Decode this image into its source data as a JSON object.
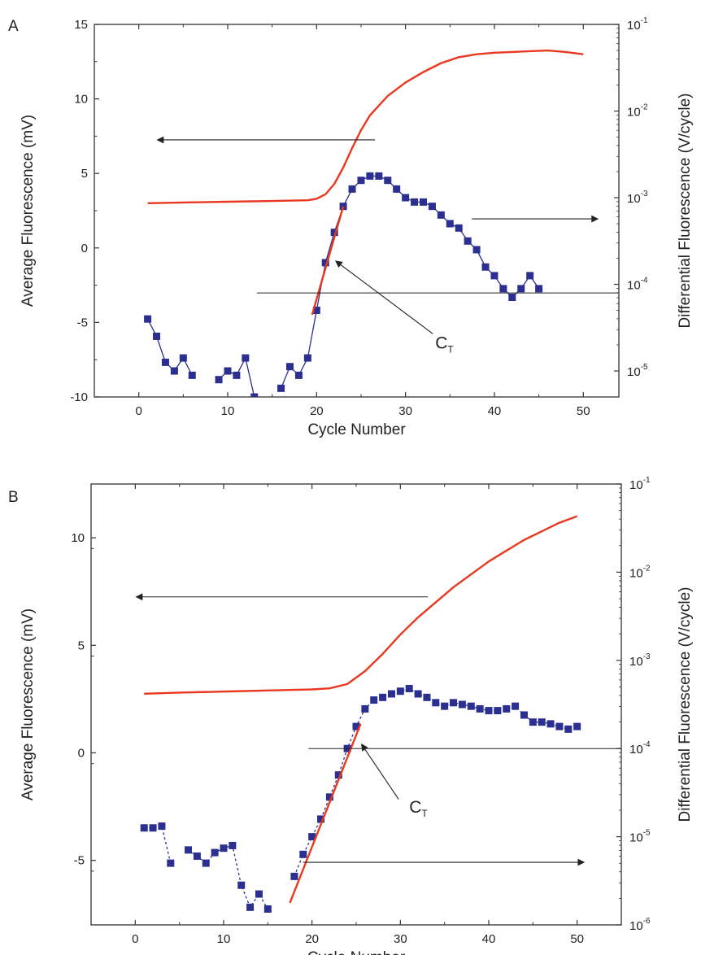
{
  "colors": {
    "fluorescence": "#e8381f",
    "derivative": "#2b2f8f",
    "axis": "#333333",
    "annotation": "#222222"
  },
  "chart_data": [
    {
      "panel": "A",
      "type": "line",
      "xlabel": "Cycle Number",
      "ylabel_left": "Average Fluorescence (mV)",
      "ylabel_right": "Differential Fluorescence (V/cycle)",
      "xlim": [
        -5,
        54
      ],
      "ylim_left": [
        -10,
        15
      ],
      "ylim_right_log": [
        -5.3,
        -1
      ],
      "x_ticks": [
        0,
        10,
        20,
        30,
        40,
        50
      ],
      "y_ticks_left": [
        -10,
        -5,
        0,
        5,
        10,
        15
      ],
      "y_ticks_right": [
        {
          "base": "10",
          "exp": "-5",
          "value": -5
        },
        {
          "base": "10",
          "exp": "-4",
          "value": -4
        },
        {
          "base": "10",
          "exp": "-3",
          "value": -3
        },
        {
          "base": "10",
          "exp": "-2",
          "value": -2
        },
        {
          "base": "10",
          "exp": "-1",
          "value": -1
        }
      ],
      "annotation": {
        "text": "C",
        "sub": "T",
        "x": 21,
        "threshold_log10": -4.1
      },
      "series": [
        {
          "axis": "left",
          "style": "line",
          "color": "#e8381f",
          "points": [
            [
              1,
              3.0
            ],
            [
              5,
              3.05
            ],
            [
              10,
              3.1
            ],
            [
              15,
              3.15
            ],
            [
              19,
              3.2
            ],
            [
              20,
              3.3
            ],
            [
              21,
              3.6
            ],
            [
              22,
              4.3
            ],
            [
              23,
              5.4
            ],
            [
              24,
              6.7
            ],
            [
              25,
              7.9
            ],
            [
              26,
              8.9
            ],
            [
              28,
              10.2
            ],
            [
              30,
              11.1
            ],
            [
              32,
              11.8
            ],
            [
              34,
              12.4
            ],
            [
              36,
              12.8
            ],
            [
              38,
              13.0
            ],
            [
              40,
              13.1
            ],
            [
              42,
              13.15
            ],
            [
              44,
              13.2
            ],
            [
              46,
              13.25
            ],
            [
              48,
              13.15
            ],
            [
              50,
              13.0
            ]
          ]
        },
        {
          "axis": "right_log",
          "style": "markers",
          "color": "#2b2f8f",
          "points": [
            [
              1,
              -4.4
            ],
            [
              2,
              -4.6
            ],
            [
              3,
              -4.9
            ],
            [
              4,
              -5.0
            ],
            [
              5,
              -4.85
            ],
            [
              6,
              -5.05
            ],
            [
              9,
              -5.1
            ],
            [
              10,
              -5.0
            ],
            [
              11,
              -5.05
            ],
            [
              12,
              -4.85
            ],
            [
              13,
              -5.3
            ],
            [
              16,
              -5.2
            ],
            [
              17,
              -4.95
            ],
            [
              18,
              -5.05
            ],
            [
              19,
              -4.85
            ],
            [
              20,
              -4.3
            ],
            [
              21,
              -3.75
            ],
            [
              22,
              -3.4
            ],
            [
              23,
              -3.1
            ],
            [
              24,
              -2.9
            ],
            [
              25,
              -2.8
            ],
            [
              26,
              -2.75
            ],
            [
              27,
              -2.75
            ],
            [
              28,
              -2.8
            ],
            [
              29,
              -2.9
            ],
            [
              30,
              -3.0
            ],
            [
              31,
              -3.05
            ],
            [
              32,
              -3.05
            ],
            [
              33,
              -3.1
            ],
            [
              34,
              -3.2
            ],
            [
              35,
              -3.3
            ],
            [
              36,
              -3.35
            ],
            [
              37,
              -3.5
            ],
            [
              38,
              -3.6
            ],
            [
              39,
              -3.8
            ],
            [
              40,
              -3.9
            ],
            [
              41,
              -4.05
            ],
            [
              42,
              -4.15
            ],
            [
              43,
              -4.05
            ],
            [
              44,
              -3.9
            ],
            [
              45,
              -4.05
            ]
          ]
        },
        {
          "axis": "right_log",
          "style": "fit",
          "color": "#e8381f",
          "points": [
            [
              19.5,
              -4.35
            ],
            [
              23,
              -3.1
            ]
          ]
        }
      ]
    },
    {
      "panel": "B",
      "type": "line",
      "xlabel": "Cycle Number",
      "ylabel_left": "Average Fluorescence (mV)",
      "ylabel_right": "Differential Fluorescence (V/cycle)",
      "xlim": [
        -5,
        55
      ],
      "ylim_left": [
        -8,
        12.5
      ],
      "ylim_right_log": [
        -6,
        -1
      ],
      "x_ticks": [
        0,
        10,
        20,
        30,
        40,
        50
      ],
      "y_ticks_left": [
        -5,
        0,
        5,
        10
      ],
      "y_ticks_right": [
        {
          "base": "10",
          "exp": "-6",
          "value": -6
        },
        {
          "base": "10",
          "exp": "-5",
          "value": -5
        },
        {
          "base": "10",
          "exp": "-4",
          "value": -4
        },
        {
          "base": "10",
          "exp": "-3",
          "value": -3
        },
        {
          "base": "10",
          "exp": "-2",
          "value": -2
        },
        {
          "base": "10",
          "exp": "-1",
          "value": -1
        }
      ],
      "annotation": {
        "text": "C",
        "sub": "T",
        "x": 24,
        "threshold_log10": -4.0
      },
      "series": [
        {
          "axis": "left",
          "style": "line",
          "color": "#e8381f",
          "points": [
            [
              1,
              2.75
            ],
            [
              5,
              2.8
            ],
            [
              10,
              2.85
            ],
            [
              15,
              2.9
            ],
            [
              20,
              2.95
            ],
            [
              22,
              3.0
            ],
            [
              24,
              3.2
            ],
            [
              26,
              3.8
            ],
            [
              28,
              4.6
            ],
            [
              30,
              5.5
            ],
            [
              32,
              6.3
            ],
            [
              34,
              7.0
            ],
            [
              36,
              7.7
            ],
            [
              38,
              8.3
            ],
            [
              40,
              8.9
            ],
            [
              42,
              9.4
            ],
            [
              44,
              9.9
            ],
            [
              46,
              10.3
            ],
            [
              48,
              10.7
            ],
            [
              50,
              11.0
            ]
          ]
        },
        {
          "axis": "right_log",
          "style": "markers",
          "color": "#2b2f8f",
          "points": [
            [
              1,
              -4.9
            ],
            [
              2,
              -4.9
            ],
            [
              3,
              -4.88
            ],
            [
              4,
              -5.3
            ],
            [
              6,
              -5.15
            ],
            [
              7,
              -5.22
            ],
            [
              8,
              -5.3
            ],
            [
              9,
              -5.18
            ],
            [
              10,
              -5.13
            ],
            [
              11,
              -5.1
            ],
            [
              12,
              -5.55
            ],
            [
              13,
              -5.8
            ],
            [
              14,
              -5.65
            ],
            [
              15,
              -5.82
            ],
            [
              18,
              -5.45
            ],
            [
              19,
              -5.2
            ],
            [
              20,
              -5.0
            ],
            [
              21,
              -4.8
            ],
            [
              22,
              -4.55
            ],
            [
              23,
              -4.3
            ],
            [
              24,
              -4.0
            ],
            [
              25,
              -3.75
            ],
            [
              26,
              -3.55
            ],
            [
              27,
              -3.45
            ],
            [
              28,
              -3.42
            ],
            [
              29,
              -3.38
            ],
            [
              30,
              -3.35
            ],
            [
              31,
              -3.32
            ],
            [
              32,
              -3.38
            ],
            [
              33,
              -3.42
            ],
            [
              34,
              -3.48
            ],
            [
              35,
              -3.52
            ],
            [
              36,
              -3.48
            ],
            [
              37,
              -3.5
            ],
            [
              38,
              -3.52
            ],
            [
              39,
              -3.55
            ],
            [
              40,
              -3.57
            ],
            [
              41,
              -3.57
            ],
            [
              42,
              -3.55
            ],
            [
              43,
              -3.52
            ],
            [
              44,
              -3.62
            ],
            [
              45,
              -3.7
            ],
            [
              46,
              -3.7
            ],
            [
              47,
              -3.72
            ],
            [
              48,
              -3.75
            ],
            [
              49,
              -3.78
            ],
            [
              50,
              -3.75
            ]
          ]
        },
        {
          "axis": "right_log",
          "style": "fit",
          "color": "#e8381f",
          "points": [
            [
              17.5,
              -5.75
            ],
            [
              25.5,
              -3.72
            ]
          ]
        }
      ]
    }
  ]
}
